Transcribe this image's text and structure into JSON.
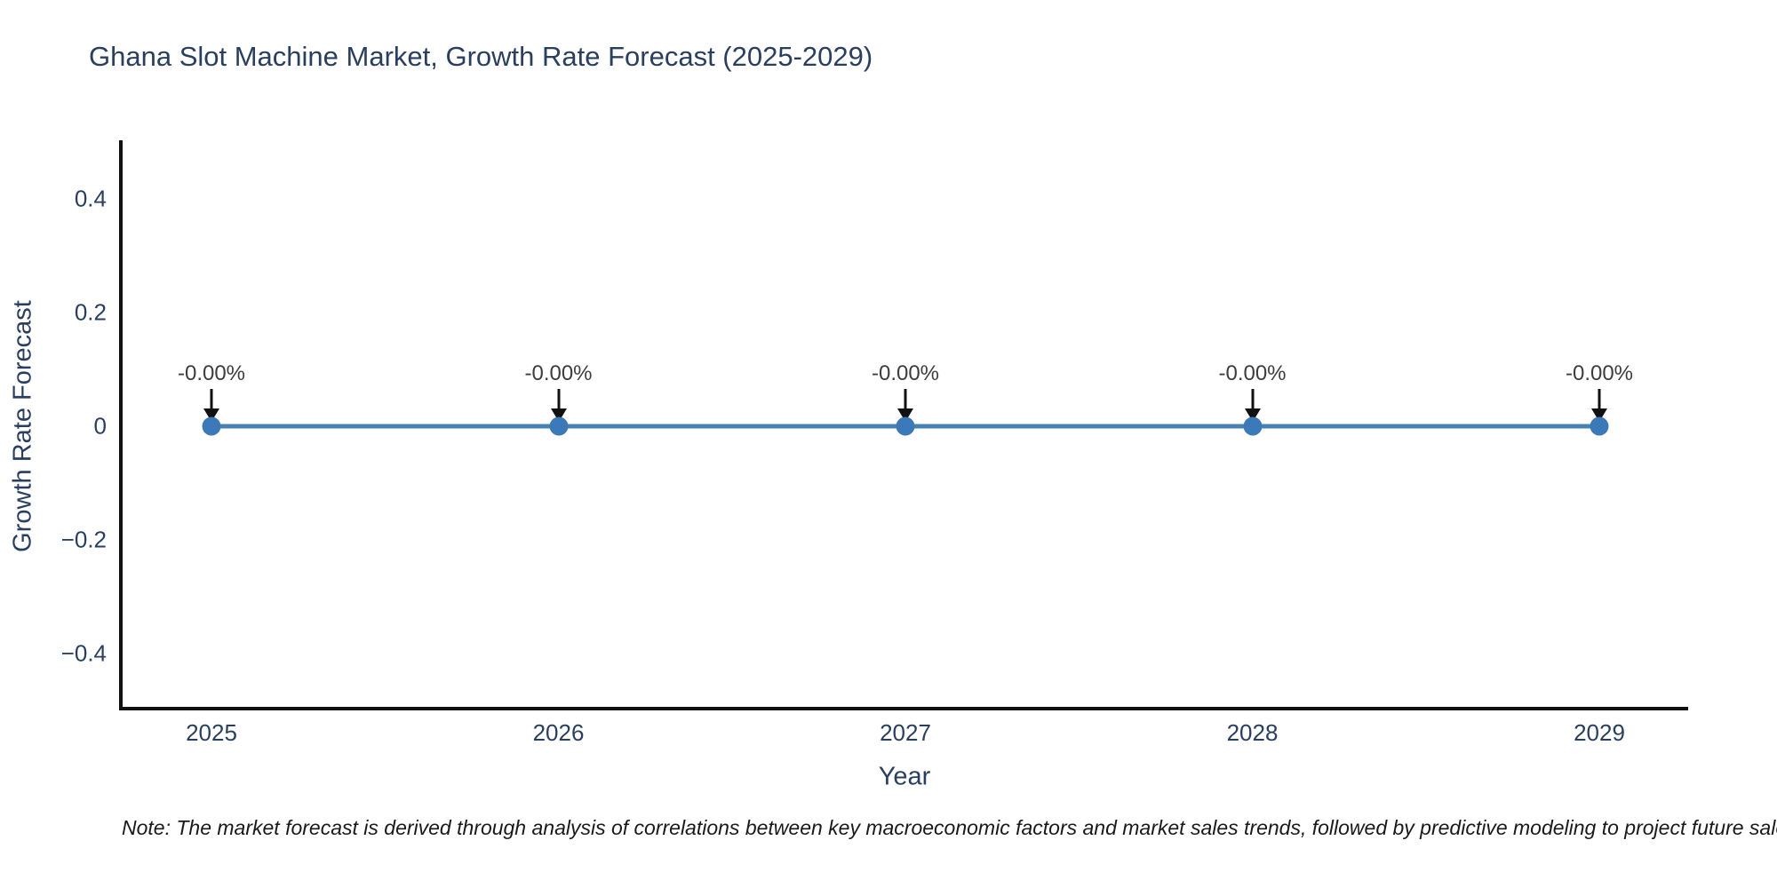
{
  "page": {
    "background_color": "#ffffff"
  },
  "chart": {
    "title": "Ghana Slot Machine Market, Growth Rate Forecast (2025-2029)",
    "xlabel": "Year",
    "ylabel": "Growth Rate Forecast",
    "note": "Note: The market forecast is derived through analysis of correlations between key macroeconomic factors and market sales trends, followed by predictive modeling to project future sales trends."
  },
  "chart_data": {
    "type": "line",
    "title": "Ghana Slot Machine Market, Growth Rate Forecast (2025-2029)",
    "xlabel": "Year",
    "ylabel": "Growth Rate Forecast",
    "categories": [
      "2025",
      "2026",
      "2027",
      "2028",
      "2029"
    ],
    "series": [
      {
        "name": "Growth Rate Forecast",
        "values": [
          0,
          0,
          0,
          0,
          0
        ]
      }
    ],
    "point_labels": [
      "-0.00%",
      "-0.00%",
      "-0.00%",
      "-0.00%",
      "-0.00%"
    ],
    "yticks": [
      {
        "label": "0.4",
        "value": 0.4
      },
      {
        "label": "0.2",
        "value": 0.2
      },
      {
        "label": "0",
        "value": 0.0
      },
      {
        "label": "−0.2",
        "value": -0.2
      },
      {
        "label": "−0.4",
        "value": -0.4
      }
    ],
    "ylim": [
      -0.5,
      0.5
    ],
    "grid": false,
    "legend": "none",
    "colors": {
      "line": "#4682b4",
      "marker": "#3c79b8",
      "axis": "#111111",
      "axis_text": "#2a3f5f",
      "annotation_text": "#3d3d3d",
      "annotation_arrow": "#111111"
    }
  }
}
